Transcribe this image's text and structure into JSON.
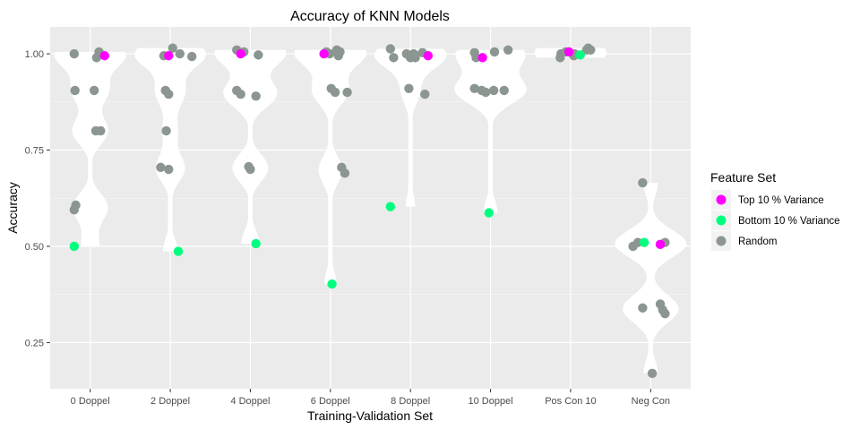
{
  "chart_data": {
    "type": "scatter",
    "title": "Accuracy of KNN Models",
    "xlabel": "Training-Validation Set",
    "ylabel": "Accuracy",
    "categories": [
      "0 Doppel",
      "2 Doppel",
      "4 Doppel",
      "6 Doppel",
      "8 Doppel",
      "10 Doppel",
      "Pos Con 10",
      "Neg Con"
    ],
    "ylim": [
      0.13,
      1.07
    ],
    "yticks": [
      0.25,
      0.5,
      0.75,
      1.0
    ],
    "ytick_labels": [
      "0.25",
      "0.50",
      "0.75",
      "1.00"
    ],
    "grid": true,
    "legend_position": "right",
    "legend_title": "Feature Set",
    "colors": {
      "panel": "#ebebeb",
      "grid": "#ffffff",
      "violin": "#ffffff",
      "top": "#ff00ff",
      "bottom": "#00ff7f",
      "random": "#8c9690"
    },
    "series": [
      {
        "name": "Top 10 % Variance",
        "color": "#ff00ff",
        "points": [
          {
            "x": "0 Doppel",
            "y": 0.995,
            "jitter": 0.18
          },
          {
            "x": "2 Doppel",
            "y": 0.995,
            "jitter": -0.02
          },
          {
            "x": "4 Doppel",
            "y": 1.0,
            "jitter": -0.12
          },
          {
            "x": "6 Doppel",
            "y": 1.0,
            "jitter": -0.08
          },
          {
            "x": "8 Doppel",
            "y": 0.995,
            "jitter": 0.22
          },
          {
            "x": "10 Doppel",
            "y": 0.99,
            "jitter": -0.1
          },
          {
            "x": "Pos Con 10",
            "y": 1.005,
            "jitter": -0.02
          },
          {
            "x": "Neg Con",
            "y": 0.505,
            "jitter": 0.12
          }
        ]
      },
      {
        "name": "Bottom 10 % Variance",
        "color": "#00ff7f",
        "points": [
          {
            "x": "0 Doppel",
            "y": 0.5,
            "jitter": -0.2
          },
          {
            "x": "2 Doppel",
            "y": 0.487,
            "jitter": 0.1
          },
          {
            "x": "4 Doppel",
            "y": 0.507,
            "jitter": 0.07
          },
          {
            "x": "6 Doppel",
            "y": 0.402,
            "jitter": 0.02
          },
          {
            "x": "8 Doppel",
            "y": 0.603,
            "jitter": -0.25
          },
          {
            "x": "10 Doppel",
            "y": 0.587,
            "jitter": -0.02
          },
          {
            "x": "Pos Con 10",
            "y": 0.997,
            "jitter": 0.12
          },
          {
            "x": "Neg Con",
            "y": 0.51,
            "jitter": -0.08
          }
        ]
      },
      {
        "name": "Random",
        "color": "#8c9690",
        "points": [
          {
            "x": "0 Doppel",
            "y": 1.0,
            "jitter": -0.2
          },
          {
            "x": "0 Doppel",
            "y": 1.005,
            "jitter": 0.11
          },
          {
            "x": "0 Doppel",
            "y": 0.99,
            "jitter": 0.08
          },
          {
            "x": "0 Doppel",
            "y": 0.905,
            "jitter": -0.19
          },
          {
            "x": "0 Doppel",
            "y": 0.905,
            "jitter": 0.05
          },
          {
            "x": "0 Doppel",
            "y": 0.8,
            "jitter": 0.07
          },
          {
            "x": "0 Doppel",
            "y": 0.8,
            "jitter": 0.13
          },
          {
            "x": "0 Doppel",
            "y": 0.607,
            "jitter": -0.18
          },
          {
            "x": "0 Doppel",
            "y": 0.595,
            "jitter": -0.2
          },
          {
            "x": "2 Doppel",
            "y": 0.995,
            "jitter": -0.08
          },
          {
            "x": "2 Doppel",
            "y": 1.015,
            "jitter": 0.03
          },
          {
            "x": "2 Doppel",
            "y": 1.0,
            "jitter": 0.12
          },
          {
            "x": "2 Doppel",
            "y": 0.993,
            "jitter": 0.27
          },
          {
            "x": "2 Doppel",
            "y": 0.905,
            "jitter": -0.06
          },
          {
            "x": "2 Doppel",
            "y": 0.895,
            "jitter": -0.02
          },
          {
            "x": "2 Doppel",
            "y": 0.8,
            "jitter": -0.05
          },
          {
            "x": "2 Doppel",
            "y": 0.705,
            "jitter": -0.12
          },
          {
            "x": "2 Doppel",
            "y": 0.7,
            "jitter": -0.02
          },
          {
            "x": "4 Doppel",
            "y": 1.01,
            "jitter": -0.17
          },
          {
            "x": "4 Doppel",
            "y": 1.005,
            "jitter": -0.08
          },
          {
            "x": "4 Doppel",
            "y": 0.997,
            "jitter": 0.1
          },
          {
            "x": "4 Doppel",
            "y": 0.905,
            "jitter": -0.17
          },
          {
            "x": "4 Doppel",
            "y": 0.895,
            "jitter": -0.12
          },
          {
            "x": "4 Doppel",
            "y": 0.89,
            "jitter": 0.07
          },
          {
            "x": "4 Doppel",
            "y": 0.707,
            "jitter": -0.02
          },
          {
            "x": "4 Doppel",
            "y": 0.7,
            "jitter": 0.0
          },
          {
            "x": "6 Doppel",
            "y": 1.005,
            "jitter": -0.05
          },
          {
            "x": "6 Doppel",
            "y": 1.0,
            "jitter": -0.01
          },
          {
            "x": "6 Doppel",
            "y": 1.01,
            "jitter": 0.08
          },
          {
            "x": "6 Doppel",
            "y": 1.005,
            "jitter": 0.12
          },
          {
            "x": "6 Doppel",
            "y": 0.995,
            "jitter": 0.1
          },
          {
            "x": "6 Doppel",
            "y": 0.91,
            "jitter": 0.01
          },
          {
            "x": "6 Doppel",
            "y": 0.9,
            "jitter": 0.06
          },
          {
            "x": "6 Doppel",
            "y": 0.9,
            "jitter": 0.21
          },
          {
            "x": "6 Doppel",
            "y": 0.705,
            "jitter": 0.14
          },
          {
            "x": "6 Doppel",
            "y": 0.69,
            "jitter": 0.18
          },
          {
            "x": "8 Doppel",
            "y": 1.013,
            "jitter": -0.25
          },
          {
            "x": "8 Doppel",
            "y": 0.99,
            "jitter": -0.21
          },
          {
            "x": "8 Doppel",
            "y": 1.0,
            "jitter": -0.05
          },
          {
            "x": "8 Doppel",
            "y": 0.99,
            "jitter": 0.0
          },
          {
            "x": "8 Doppel",
            "y": 1.0,
            "jitter": 0.04
          },
          {
            "x": "8 Doppel",
            "y": 0.99,
            "jitter": 0.06
          },
          {
            "x": "8 Doppel",
            "y": 1.003,
            "jitter": 0.15
          },
          {
            "x": "8 Doppel",
            "y": 0.91,
            "jitter": -0.02
          },
          {
            "x": "8 Doppel",
            "y": 0.895,
            "jitter": 0.18
          },
          {
            "x": "10 Doppel",
            "y": 1.003,
            "jitter": -0.2
          },
          {
            "x": "10 Doppel",
            "y": 0.99,
            "jitter": -0.18
          },
          {
            "x": "10 Doppel",
            "y": 1.005,
            "jitter": 0.05
          },
          {
            "x": "10 Doppel",
            "y": 1.01,
            "jitter": 0.22
          },
          {
            "x": "10 Doppel",
            "y": 0.91,
            "jitter": -0.2
          },
          {
            "x": "10 Doppel",
            "y": 0.905,
            "jitter": -0.11
          },
          {
            "x": "10 Doppel",
            "y": 0.9,
            "jitter": -0.06
          },
          {
            "x": "10 Doppel",
            "y": 0.905,
            "jitter": 0.04
          },
          {
            "x": "10 Doppel",
            "y": 0.905,
            "jitter": 0.17
          },
          {
            "x": "Pos Con 10",
            "y": 1.0,
            "jitter": -0.12
          },
          {
            "x": "Pos Con 10",
            "y": 0.99,
            "jitter": -0.13
          },
          {
            "x": "Pos Con 10",
            "y": 1.005,
            "jitter": -0.06
          },
          {
            "x": "Pos Con 10",
            "y": 0.995,
            "jitter": 0.04
          },
          {
            "x": "Pos Con 10",
            "y": 1.0,
            "jitter": 0.05
          },
          {
            "x": "Pos Con 10",
            "y": 1.01,
            "jitter": 0.2
          },
          {
            "x": "Pos Con 10",
            "y": 1.015,
            "jitter": 0.22
          },
          {
            "x": "Pos Con 10",
            "y": 1.01,
            "jitter": 0.25
          },
          {
            "x": "Neg Con",
            "y": 0.665,
            "jitter": -0.1
          },
          {
            "x": "Neg Con",
            "y": 0.51,
            "jitter": -0.16
          },
          {
            "x": "Neg Con",
            "y": 0.5,
            "jitter": -0.22
          },
          {
            "x": "Neg Con",
            "y": 0.51,
            "jitter": 0.18
          },
          {
            "x": "Neg Con",
            "y": 0.34,
            "jitter": -0.1
          },
          {
            "x": "Neg Con",
            "y": 0.35,
            "jitter": 0.12
          },
          {
            "x": "Neg Con",
            "y": 0.335,
            "jitter": 0.15
          },
          {
            "x": "Neg Con",
            "y": 0.325,
            "jitter": 0.18
          },
          {
            "x": "Neg Con",
            "y": 0.17,
            "jitter": 0.02
          }
        ]
      }
    ]
  }
}
